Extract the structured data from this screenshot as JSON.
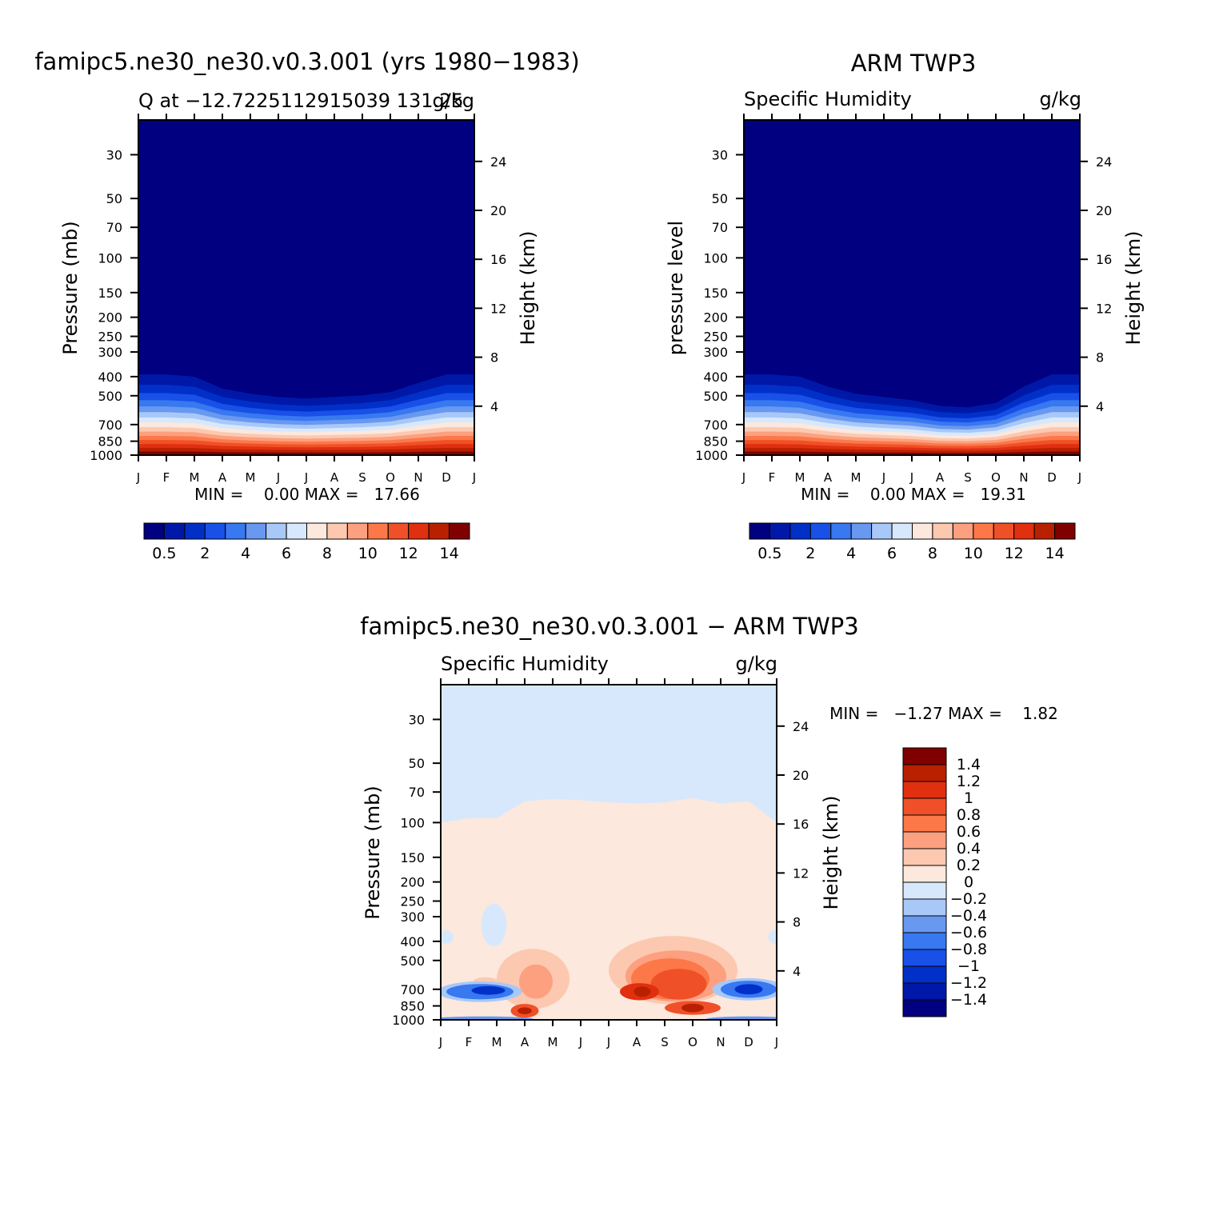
{
  "panels": [
    {
      "title": "famipc5.ne30_ne30.v0.3.001 (yrs 1980−1983)",
      "subtitle_left": "Q at −12.7225112915039 131.25",
      "subtitle_right": "g/kg",
      "ylabel_left": "Pressure (mb)",
      "ylabel_right": "Height (km)",
      "stats": "MIN =    0.00 MAX =   17.66"
    },
    {
      "title": "ARM TWP3",
      "subtitle_left": "Specific Humidity",
      "subtitle_right": "g/kg",
      "ylabel_left": "pressure level",
      "ylabel_right": "Height (km)",
      "stats": "MIN =    0.00 MAX =   19.31"
    },
    {
      "title": "famipc5.ne30_ne30.v0.3.001 − ARM TWP3",
      "subtitle_left": "Specific Humidity",
      "subtitle_right": "g/kg",
      "ylabel_left": "Pressure (mb)",
      "ylabel_right": "Height (km)",
      "stats": "MIN =   −1.27 MAX =    1.82"
    }
  ],
  "colors": {
    "q_levels": [
      "#000080",
      "#0018A8",
      "#0030C8",
      "#1850E8",
      "#3878F0",
      "#6898F0",
      "#A8C8F8",
      "#D8E8FC",
      "#FCE8DC",
      "#FCC8B0",
      "#FCA080",
      "#FC7848",
      "#F05028",
      "#E03010",
      "#B82000",
      "#800000"
    ],
    "diff_levels": [
      "#000080",
      "#0018A8",
      "#0030C8",
      "#1850E8",
      "#3878F0",
      "#6898F0",
      "#A8C8F8",
      "#D8E8FC",
      "#FCE8DC",
      "#FCC8B0",
      "#FCA080",
      "#FC7848",
      "#F05028",
      "#E03010",
      "#B82000",
      "#800000"
    ]
  },
  "chart_data": [
    {
      "type": "heatmap",
      "title": "famipc5.ne30_ne30.v0.3.001 (yrs 1980−1983)",
      "x_ticks": [
        "J",
        "F",
        "M",
        "A",
        "M",
        "J",
        "J",
        "A",
        "S",
        "O",
        "N",
        "D",
        "J"
      ],
      "y_ticks_pressure": [
        30,
        50,
        70,
        100,
        150,
        200,
        250,
        300,
        400,
        500,
        700,
        850,
        1000
      ],
      "y_ticks_height": [
        24,
        20,
        16,
        12,
        8,
        4
      ],
      "ylim": [
        1000,
        20
      ],
      "colorbar_labels": [
        "0.5",
        "2",
        "4",
        "6",
        "8",
        "10",
        "12",
        "14"
      ],
      "min": 0.0,
      "max": 17.66,
      "months": [
        "Jan",
        "Feb",
        "Mar",
        "Apr",
        "May",
        "Jun",
        "Jul",
        "Aug",
        "Sep",
        "Oct",
        "Nov",
        "Dec",
        "Jan"
      ],
      "dry_top_pressure": [
        300,
        300,
        310,
        370,
        400,
        420,
        430,
        420,
        410,
        390,
        340,
        300,
        300
      ]
    },
    {
      "type": "heatmap",
      "title": "ARM TWP3",
      "x_ticks": [
        "J",
        "F",
        "M",
        "A",
        "M",
        "J",
        "J",
        "A",
        "S",
        "O",
        "N",
        "D",
        "J"
      ],
      "y_ticks_pressure": [
        30,
        50,
        70,
        100,
        150,
        200,
        250,
        300,
        400,
        500,
        700,
        850,
        1000
      ],
      "y_ticks_height": [
        24,
        20,
        16,
        12,
        8,
        4
      ],
      "ylim": [
        1000,
        20
      ],
      "colorbar_labels": [
        "0.5",
        "2",
        "4",
        "6",
        "8",
        "10",
        "12",
        "14"
      ],
      "min": 0.0,
      "max": 19.31,
      "months": [
        "Jan",
        "Feb",
        "Mar",
        "Apr",
        "May",
        "Jun",
        "Jul",
        "Aug",
        "Sep",
        "Oct",
        "Nov",
        "Dec",
        "Jan"
      ],
      "dry_top_pressure": [
        300,
        300,
        310,
        360,
        400,
        420,
        440,
        480,
        490,
        460,
        360,
        300,
        300
      ]
    },
    {
      "type": "heatmap",
      "title": "famipc5.ne30_ne30.v0.3.001 − ARM TWP3",
      "x_ticks": [
        "J",
        "F",
        "M",
        "A",
        "M",
        "J",
        "J",
        "A",
        "S",
        "O",
        "N",
        "D",
        "J"
      ],
      "y_ticks_pressure": [
        30,
        50,
        70,
        100,
        150,
        200,
        250,
        300,
        400,
        500,
        700,
        850,
        1000
      ],
      "y_ticks_height": [
        24,
        20,
        16,
        12,
        8,
        4
      ],
      "ylim": [
        1000,
        20
      ],
      "colorbar_labels": [
        "1.4",
        "1.2",
        "1",
        "0.8",
        "0.6",
        "0.4",
        "0.2",
        "0",
        "−0.2",
        "−0.4",
        "−0.6",
        "−0.8",
        "−1",
        "−1.2",
        "−1.4"
      ],
      "min": -1.27,
      "max": 1.82,
      "months": [
        "Jan",
        "Feb",
        "Mar",
        "Apr",
        "May",
        "Jun",
        "Jul",
        "Aug",
        "Sep",
        "Oct",
        "Nov",
        "Dec",
        "Jan"
      ],
      "zero_line_pressure": [
        100,
        95,
        95,
        78,
        76,
        77,
        79,
        80,
        79,
        75,
        80,
        78,
        100
      ]
    }
  ]
}
